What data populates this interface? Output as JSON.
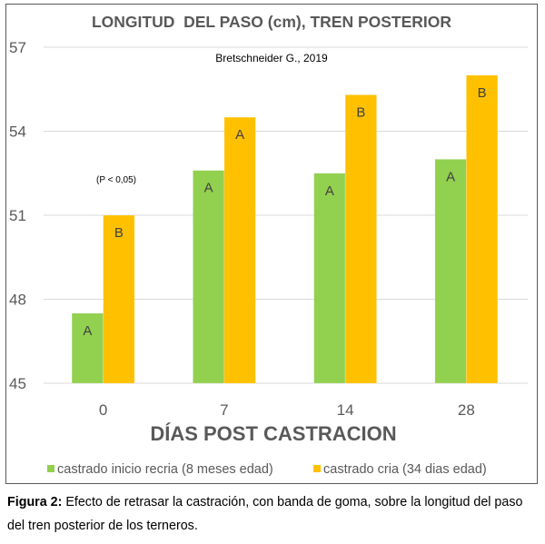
{
  "chart_data": {
    "type": "bar",
    "title": "LONGITUD  DEL PASO (cm), TREN POSTERIOR",
    "subtitle": "Bretschneider G., 2019",
    "annotation": "(P < 0,05)",
    "xlabel": "DÍAS POST CASTRACION",
    "ylabel": "",
    "categories": [
      "0",
      "7",
      "14",
      "28"
    ],
    "ylim": [
      45,
      57
    ],
    "yticks": [
      45,
      48,
      51,
      54,
      57
    ],
    "grid": true,
    "legend_position": "bottom",
    "series": [
      {
        "name": "castrado inicio recria (8 meses edad)",
        "color": "#92D050",
        "values": [
          47.5,
          52.6,
          52.5,
          53.0
        ],
        "labels": [
          "A",
          "A",
          "A",
          "A"
        ]
      },
      {
        "name": "castrado cria (34 dias edad)",
        "color": "#FFC000",
        "values": [
          51.0,
          54.5,
          55.3,
          56.0
        ],
        "labels": [
          "B",
          "A",
          "B",
          "B"
        ]
      }
    ]
  },
  "caption": {
    "label": "Figura 2:",
    "text": " Efecto de retrasar la castración, con banda de goma, sobre la longitud del paso del tren posterior de los terneros."
  }
}
